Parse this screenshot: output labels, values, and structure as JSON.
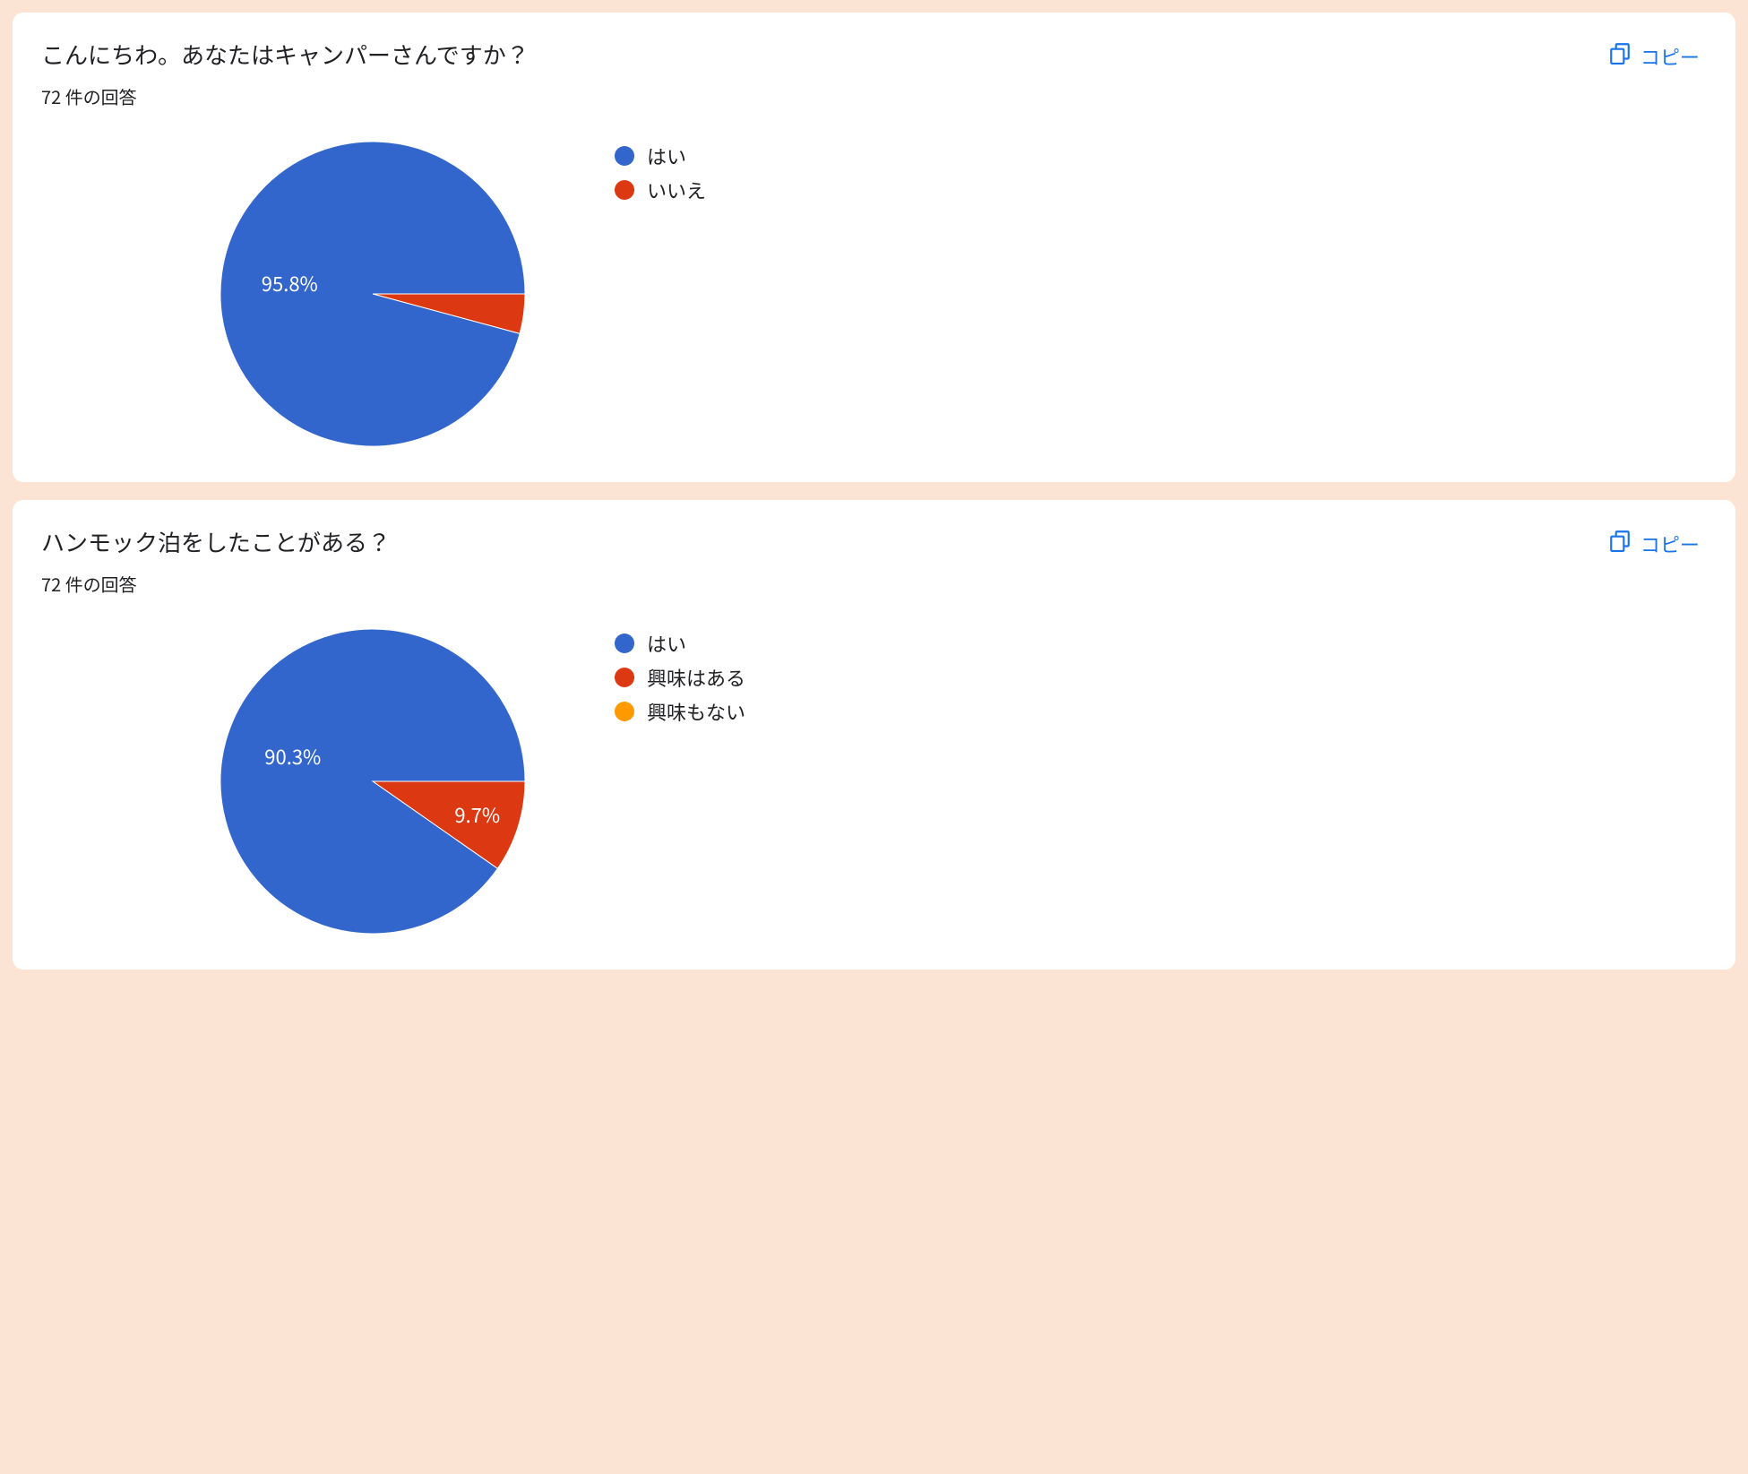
{
  "copy_label": "コピー",
  "copy_icon_color": "#1a73e8",
  "background_color": "#fbe4d4",
  "card_background": "#ffffff",
  "cards": [
    {
      "title": "こんにちわ。あなたはキャンパーさんですか？",
      "subtitle": "72 件の回答",
      "chart": {
        "type": "pie",
        "radius": 170,
        "slice_border_color": "#ffffff",
        "slice_border_width": 1,
        "slices": [
          {
            "label": "はい",
            "value": 95.8,
            "color": "#3366cc",
            "show_label": true
          },
          {
            "label": "いいえ",
            "value": 4.2,
            "color": "#dc3912",
            "show_label": false
          }
        ],
        "label_color": "#ffffff",
        "label_fontsize": 22,
        "legend_fontsize": 22,
        "legend_text_color": "#202124"
      }
    },
    {
      "title": "ハンモック泊をしたことがある？",
      "subtitle": "72 件の回答",
      "chart": {
        "type": "pie",
        "radius": 170,
        "slice_border_color": "#ffffff",
        "slice_border_width": 1,
        "slices": [
          {
            "label": "はい",
            "value": 90.3,
            "color": "#3366cc",
            "show_label": true
          },
          {
            "label": "興味はある",
            "value": 9.7,
            "color": "#dc3912",
            "show_label": true
          },
          {
            "label": "興味もない",
            "value": 0.0,
            "color": "#ff9900",
            "show_label": false
          }
        ],
        "label_color": "#ffffff",
        "label_fontsize": 22,
        "legend_fontsize": 22,
        "legend_text_color": "#202124"
      }
    }
  ]
}
